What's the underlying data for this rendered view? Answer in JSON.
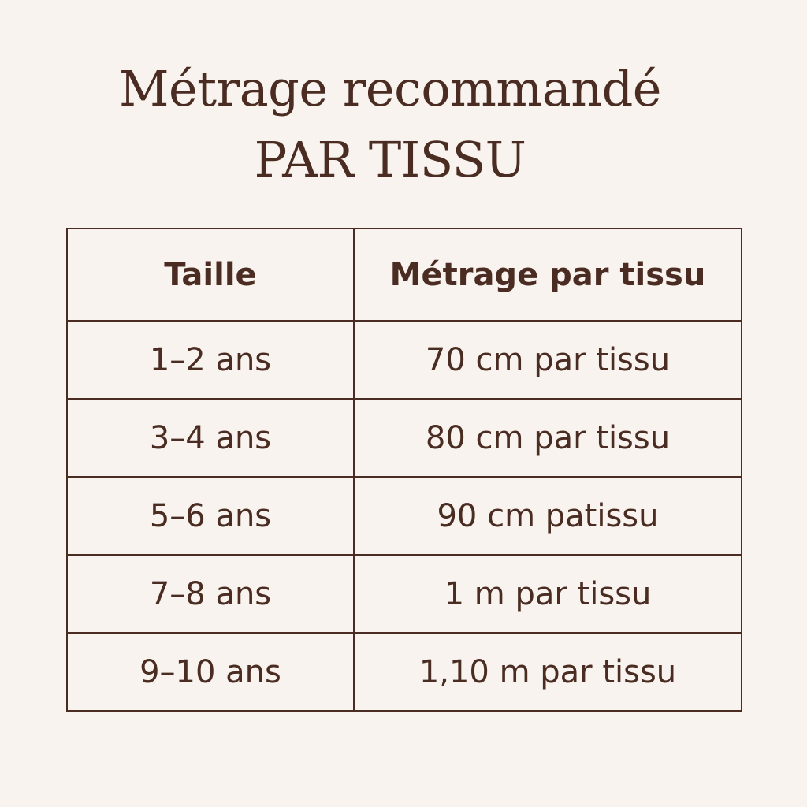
{
  "title": {
    "line1": "Métrage recommandé",
    "line2": "PAR TISSU"
  },
  "table": {
    "headers": [
      "Taille",
      "Métrage par tissu"
    ],
    "rows": [
      [
        "1–2 ans",
        "70 cm par tissu"
      ],
      [
        "3–4 ans",
        "80 cm par tissu"
      ],
      [
        "5–6 ans",
        "90 cm patissu"
      ],
      [
        "7–8 ans",
        "1 m par tissu"
      ],
      [
        "9–10 ans",
        "1,10 m par tissu"
      ]
    ]
  },
  "colors": {
    "text": "#4a2c22",
    "background": "#f8f3ee"
  }
}
